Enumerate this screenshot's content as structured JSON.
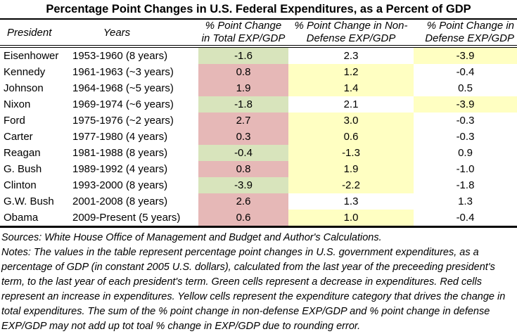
{
  "title": "Percentage Point Changes in U.S. Federal Expenditures, as a Percent of GDP",
  "colors": {
    "green": "#d8e4bc",
    "red": "#e6b8b7",
    "yellow": "#ffffc2",
    "none": "transparent"
  },
  "chart_data": {
    "type": "table",
    "title": "Percentage Point Changes in U.S. Federal Expenditures, as a Percent of GDP",
    "columns": [
      {
        "id": "president",
        "header": "President"
      },
      {
        "id": "years",
        "header": "Years"
      },
      {
        "id": "total",
        "header_lines": [
          "% Point Change",
          "in Total EXP/GDP"
        ]
      },
      {
        "id": "nondefense",
        "header_lines": [
          "% Point Change in Non-",
          "Defense EXP/GDP"
        ]
      },
      {
        "id": "defense",
        "header_lines": [
          "% Point Change in",
          "Defense EXP/GDP"
        ]
      }
    ],
    "rows": [
      {
        "president": "Eisenhower",
        "years": "1953-1960 (8 years)",
        "total": "-1.6",
        "nondefense": "2.3",
        "defense": "-3.9",
        "colors": {
          "total": "green",
          "nondefense": "none",
          "defense": "yellow"
        }
      },
      {
        "president": "Kennedy",
        "years": "1961-1963 (~3 years)",
        "total": "0.8",
        "nondefense": "1.2",
        "defense": "-0.4",
        "colors": {
          "total": "red",
          "nondefense": "yellow",
          "defense": "none"
        }
      },
      {
        "president": "Johnson",
        "years": "1964-1968 (~5 years)",
        "total": "1.9",
        "nondefense": "1.4",
        "defense": "0.5",
        "colors": {
          "total": "red",
          "nondefense": "yellow",
          "defense": "none"
        }
      },
      {
        "president": "Nixon",
        "years": "1969-1974 (~6 years)",
        "total": "-1.8",
        "nondefense": "2.1",
        "defense": "-3.9",
        "colors": {
          "total": "green",
          "nondefense": "none",
          "defense": "yellow"
        }
      },
      {
        "president": "Ford",
        "years": "1975-1976 (~2 years)",
        "total": "2.7",
        "nondefense": "3.0",
        "defense": "-0.3",
        "colors": {
          "total": "red",
          "nondefense": "yellow",
          "defense": "none"
        }
      },
      {
        "president": "Carter",
        "years": "1977-1980 (4 years)",
        "total": "0.3",
        "nondefense": "0.6",
        "defense": "-0.3",
        "colors": {
          "total": "red",
          "nondefense": "yellow",
          "defense": "none"
        }
      },
      {
        "president": "Reagan",
        "years": "1981-1988 (8 years)",
        "total": "-0.4",
        "nondefense": "-1.3",
        "defense": "0.9",
        "colors": {
          "total": "green",
          "nondefense": "yellow",
          "defense": "none"
        }
      },
      {
        "president": "G. Bush",
        "years": "1989-1992 (4 years)",
        "total": "0.8",
        "nondefense": "1.9",
        "defense": "-1.0",
        "colors": {
          "total": "red",
          "nondefense": "yellow",
          "defense": "none"
        }
      },
      {
        "president": "Clinton",
        "years": "1993-2000 (8 years)",
        "total": "-3.9",
        "nondefense": "-2.2",
        "defense": "-1.8",
        "colors": {
          "total": "green",
          "nondefense": "yellow",
          "defense": "none"
        }
      },
      {
        "president": "G.W. Bush",
        "years": "2001-2008 (8 years)",
        "total": "2.6",
        "nondefense": "1.3",
        "defense": "1.3",
        "colors": {
          "total": "red",
          "nondefense": "none",
          "defense": "none"
        }
      },
      {
        "president": "Obama",
        "years": "2009-Present (5 years)",
        "total": "0.6",
        "nondefense": "1.0",
        "defense": "-0.4",
        "colors": {
          "total": "red",
          "nondefense": "yellow",
          "defense": "none"
        }
      }
    ],
    "color_legend": {
      "green": "decrease in expenditures",
      "red": "increase in expenditures",
      "yellow": "expenditure category that drives the change in total expenditures"
    }
  },
  "notes": {
    "sources": "Sources: White House Office of Management and Budget and Author's Calculations.",
    "body": "Notes: The values in the table represent percentage point changes in U.S. government expenditures, as a percentage of GDP (in constant 2005 U.S. dollars), calculated from the last year of the preceeding president's term, to the last year of each president's term. Green cells represent a decrease in expenditures. Red cells represent an increase in expenditures. Yellow cells represent the expenditure category that drives the change in total expenditures. The sum of the % point change in non-defense EXP/GDP and % point change in defense EXP/GDP may not add up tot toal % change in EXP/GDP due to rounding error."
  }
}
